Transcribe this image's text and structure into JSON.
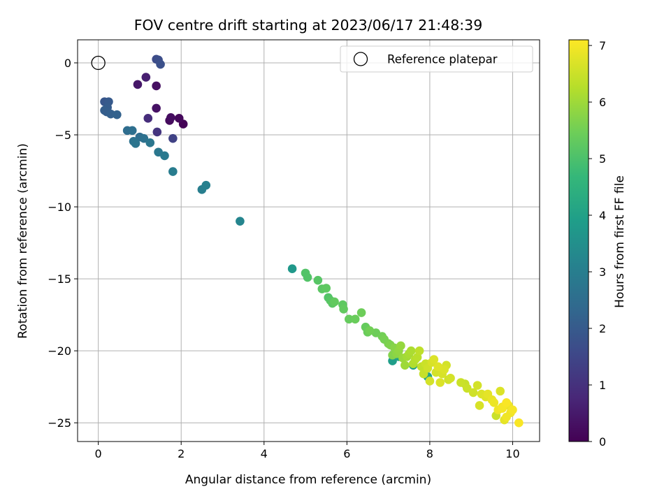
{
  "chart_data": {
    "type": "scatter",
    "title": "FOV centre drift starting at 2023/06/17 21:48:39",
    "xlabel": "Angular distance from reference (arcmin)",
    "ylabel": "Rotation from reference (arcmin)",
    "xlim": [
      -0.5,
      10.65
    ],
    "ylim": [
      -26.3,
      1.6
    ],
    "xticks": [
      0,
      2,
      4,
      6,
      8,
      10
    ],
    "xtick_labels": [
      "0",
      "2",
      "4",
      "6",
      "8",
      "10"
    ],
    "yticks": [
      0,
      -5,
      -10,
      -15,
      -20,
      -25
    ],
    "ytick_labels": [
      "0",
      "−5",
      "−10",
      "−15",
      "−20",
      "−25"
    ],
    "grid": true,
    "legend": {
      "position": "top-right",
      "entries": [
        "Reference platepar"
      ]
    },
    "colorbar": {
      "label": "Hours from first FF file",
      "colormap": "viridis",
      "range": [
        0,
        7.1
      ],
      "ticks": [
        0,
        1,
        2,
        3,
        4,
        5,
        6,
        7
      ],
      "tick_labels": [
        "0",
        "1",
        "2",
        "3",
        "4",
        "5",
        "6",
        "7"
      ]
    },
    "reference_point": {
      "x": 0,
      "y": 0
    },
    "series": [
      {
        "x": [
          2.05,
          1.95,
          1.75,
          1.72,
          1.4,
          1.4,
          0.95,
          1.15,
          1.2,
          1.42,
          1.8,
          1.4,
          1.45,
          1.5,
          0.15,
          0.25,
          0.22,
          0.15,
          0.3,
          0.45,
          0.2,
          0.7,
          0.82,
          1.0,
          1.1,
          0.85,
          0.9,
          1.25,
          1.45,
          1.6,
          1.8,
          2.5,
          2.6,
          3.42,
          4.68,
          5.0,
          5.05,
          5.3,
          5.4,
          5.5,
          5.55,
          5.6,
          5.65,
          5.7,
          5.9,
          5.92,
          6.05,
          6.2,
          6.35,
          6.45,
          6.5,
          6.55,
          6.7,
          6.85,
          6.9,
          7.0,
          7.05,
          7.1,
          7.1,
          7.15,
          7.2,
          7.25,
          7.3,
          7.35,
          7.4,
          7.45,
          7.5,
          7.55,
          7.6,
          7.65,
          7.7,
          7.75,
          7.8,
          7.85,
          7.9,
          7.95,
          8.0,
          8.05,
          8.1,
          8.15,
          8.2,
          8.25,
          8.3,
          8.35,
          8.4,
          8.45,
          8.5,
          8.75,
          8.85,
          8.9,
          9.05,
          9.15,
          9.2,
          9.25,
          9.35,
          9.4,
          9.5,
          9.55,
          9.6,
          9.65,
          9.7,
          9.75,
          9.8,
          9.85,
          9.9,
          9.95,
          10.0,
          10.15,
          9.85,
          9.75,
          7.6,
          7.25,
          7.95
        ],
        "y": [
          -4.25,
          -3.85,
          -3.8,
          -4.0,
          -3.15,
          -1.6,
          -1.5,
          -1.0,
          -3.85,
          -4.8,
          -5.25,
          0.25,
          0.2,
          -0.1,
          -2.7,
          -2.7,
          -3.1,
          -3.3,
          -3.55,
          -3.6,
          -3.4,
          -4.7,
          -4.7,
          -5.15,
          -5.25,
          -5.45,
          -5.6,
          -5.55,
          -6.2,
          -6.45,
          -7.55,
          -8.8,
          -8.5,
          -11.0,
          -14.3,
          -14.6,
          -14.9,
          -15.1,
          -15.7,
          -15.65,
          -16.3,
          -16.5,
          -16.7,
          -16.6,
          -16.8,
          -17.1,
          -17.8,
          -17.8,
          -17.35,
          -18.35,
          -18.7,
          -18.6,
          -18.75,
          -19.0,
          -19.2,
          -19.5,
          -19.6,
          -20.7,
          -20.3,
          -19.8,
          -20.2,
          -20.0,
          -19.65,
          -20.5,
          -21.0,
          -20.4,
          -20.2,
          -20.0,
          -20.9,
          -20.6,
          -20.45,
          -20.0,
          -21.1,
          -21.6,
          -20.9,
          -21.2,
          -22.1,
          -20.8,
          -20.6,
          -21.5,
          -21.1,
          -22.2,
          -21.6,
          -21.3,
          -21.0,
          -22.0,
          -21.9,
          -22.2,
          -22.3,
          -22.6,
          -22.9,
          -22.4,
          -23.8,
          -23.0,
          -23.2,
          -23.0,
          -23.4,
          -23.6,
          -24.5,
          -24.1,
          -22.8,
          -24.0,
          -24.8,
          -23.6,
          -23.8,
          -24.3,
          -24.1,
          -25.0,
          -24.6,
          -23.9,
          -21.0,
          -20.4,
          -21.8
        ],
        "c": [
          0.05,
          0.15,
          0.25,
          0.2,
          0.35,
          0.3,
          0.45,
          0.6,
          0.9,
          1.1,
          1.4,
          1.6,
          1.7,
          1.75,
          1.9,
          2.0,
          2.05,
          2.1,
          2.15,
          2.2,
          2.1,
          2.5,
          2.55,
          2.5,
          2.6,
          2.65,
          2.7,
          2.75,
          2.8,
          2.85,
          2.95,
          3.0,
          3.05,
          3.2,
          3.75,
          5.1,
          5.1,
          5.15,
          5.2,
          5.25,
          5.1,
          5.15,
          5.2,
          5.3,
          5.25,
          5.3,
          5.35,
          5.4,
          5.45,
          5.35,
          5.4,
          5.5,
          5.45,
          5.5,
          5.55,
          5.6,
          5.65,
          3.9,
          5.7,
          5.75,
          5.8,
          5.85,
          5.9,
          5.95,
          6.0,
          6.05,
          6.1,
          6.15,
          6.2,
          6.25,
          6.3,
          6.35,
          6.4,
          6.45,
          6.5,
          6.55,
          6.6,
          6.65,
          6.7,
          6.6,
          6.75,
          6.7,
          6.65,
          6.7,
          6.6,
          6.55,
          6.6,
          6.5,
          6.45,
          6.5,
          6.55,
          6.6,
          6.65,
          6.7,
          6.75,
          6.8,
          6.85,
          6.9,
          6.5,
          6.95,
          6.7,
          7.0,
          6.8,
          7.05,
          6.9,
          6.95,
          7.0,
          7.05,
          6.95,
          6.9,
          3.9,
          4.0,
          4.1
        ]
      }
    ]
  }
}
